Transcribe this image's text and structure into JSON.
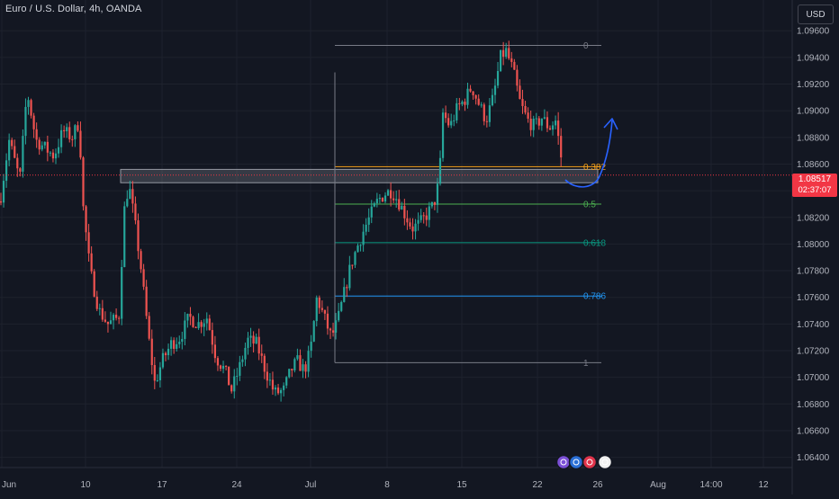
{
  "header": {
    "title": "Euro / U.S. Dollar, 4h, OANDA"
  },
  "currency_button": {
    "label": "USD"
  },
  "current_price": {
    "value": "1.08517",
    "countdown": "02:37:07",
    "price": 1.08517
  },
  "colors": {
    "background": "#131722",
    "bull": "#26a69a",
    "bear": "#ef5350",
    "fib_0": "#787b86",
    "fib_0382": "#f7a21b",
    "fib_05": "#4caf50",
    "fib_0618": "#089981",
    "fib_0786": "#2196f3",
    "fib_1": "#787b86",
    "arrow": "#2962ff",
    "price_line": "#f23645"
  },
  "chart_data": {
    "type": "candlestick",
    "ylim": [
      1.0635,
      1.0975
    ],
    "y_ticks": [
      "1.09600",
      "1.09400",
      "1.09200",
      "1.09000",
      "1.08800",
      "1.08600",
      "1.08400",
      "1.08200",
      "1.08000",
      "1.07800",
      "1.07600",
      "1.07400",
      "1.07200",
      "1.07000",
      "1.06800",
      "1.06600",
      "1.06400"
    ],
    "y_tick_values": [
      1.096,
      1.094,
      1.092,
      1.09,
      1.088,
      1.086,
      1.084,
      1.082,
      1.08,
      1.078,
      1.076,
      1.074,
      1.072,
      1.07,
      1.068,
      1.066,
      1.064
    ],
    "x_ticks": [
      {
        "label": "Jun",
        "index": 2
      },
      {
        "label": "10",
        "index": 95
      },
      {
        "label": "17",
        "index": 180
      },
      {
        "label": "24",
        "index": 263
      },
      {
        "label": "Jul",
        "index": 345
      },
      {
        "label": "8",
        "index": 430
      },
      {
        "label": "15",
        "index": 513
      },
      {
        "label": "22",
        "index": 597
      },
      {
        "label": "26",
        "index": 664
      },
      {
        "label": "Aug",
        "index": 731
      },
      {
        "label": "14:00",
        "index": 790
      },
      {
        "label": "12",
        "index": 848
      }
    ],
    "x_range": [
      0,
      932
    ],
    "fib_levels": [
      {
        "label": "0",
        "price": 1.0949,
        "color": "#787b86"
      },
      {
        "label": "0.382",
        "price": 1.0858,
        "color": "#f7a21b"
      },
      {
        "label": "0.5",
        "price": 1.083,
        "color": "#4caf50"
      },
      {
        "label": "0.618",
        "price": 1.0801,
        "color": "#089981"
      },
      {
        "label": "0.786",
        "price": 1.0761,
        "color": "#2196f3"
      },
      {
        "label": "1",
        "price": 1.0711,
        "color": "#787b86"
      }
    ],
    "fib_range": [
      372,
      668
    ],
    "support_zone": {
      "x_range": [
        134,
        664
      ],
      "price_top": 1.0856,
      "price_bottom": 1.0846
    },
    "anchors": [
      [
        0,
        1.0832
      ],
      [
        10,
        1.0878
      ],
      [
        22,
        1.0848
      ],
      [
        30,
        1.0915
      ],
      [
        40,
        1.0878
      ],
      [
        50,
        1.0872
      ],
      [
        60,
        1.0866
      ],
      [
        70,
        1.0885
      ],
      [
        80,
        1.088
      ],
      [
        88,
        1.0892
      ],
      [
        92,
        1.083
      ],
      [
        100,
        1.078
      ],
      [
        110,
        1.075
      ],
      [
        120,
        1.074
      ],
      [
        132,
        1.0745
      ],
      [
        138,
        1.0825
      ],
      [
        143,
        1.0845
      ],
      [
        150,
        1.0815
      ],
      [
        157,
        1.078
      ],
      [
        165,
        1.073
      ],
      [
        172,
        1.0695
      ],
      [
        180,
        1.0712
      ],
      [
        190,
        1.0725
      ],
      [
        200,
        1.073
      ],
      [
        210,
        1.0745
      ],
      [
        220,
        1.074
      ],
      [
        230,
        1.0745
      ],
      [
        240,
        1.0715
      ],
      [
        250,
        1.0705
      ],
      [
        257,
        1.069
      ],
      [
        265,
        1.0705
      ],
      [
        275,
        1.0728
      ],
      [
        285,
        1.0725
      ],
      [
        295,
        1.0705
      ],
      [
        305,
        1.0688
      ],
      [
        315,
        1.069
      ],
      [
        323,
        1.0705
      ],
      [
        330,
        1.0712
      ],
      [
        338,
        1.0705
      ],
      [
        345,
        1.072
      ],
      [
        352,
        1.076
      ],
      [
        360,
        1.0745
      ],
      [
        368,
        1.073
      ],
      [
        375,
        1.0742
      ],
      [
        383,
        1.0765
      ],
      [
        390,
        1.0785
      ],
      [
        398,
        1.08
      ],
      [
        405,
        1.0812
      ],
      [
        412,
        1.0822
      ],
      [
        420,
        1.0833
      ],
      [
        428,
        1.0838
      ],
      [
        435,
        1.084
      ],
      [
        442,
        1.0833
      ],
      [
        450,
        1.0822
      ],
      [
        458,
        1.0812
      ],
      [
        466,
        1.0815
      ],
      [
        474,
        1.0822
      ],
      [
        482,
        1.083
      ],
      [
        488,
        1.0848
      ],
      [
        492,
        1.0898
      ],
      [
        500,
        1.0888
      ],
      [
        508,
        1.0902
      ],
      [
        516,
        1.0908
      ],
      [
        524,
        1.0918
      ],
      [
        532,
        1.0905
      ],
      [
        540,
        1.0893
      ],
      [
        548,
        1.091
      ],
      [
        556,
        1.094
      ],
      [
        562,
        1.0945
      ],
      [
        570,
        1.093
      ],
      [
        578,
        1.0905
      ],
      [
        586,
        1.0893
      ],
      [
        594,
        1.0888
      ],
      [
        602,
        1.0895
      ],
      [
        610,
        1.0887
      ],
      [
        617,
        1.0893
      ],
      [
        622,
        1.0872
      ],
      [
        626,
        1.085
      ]
    ]
  }
}
